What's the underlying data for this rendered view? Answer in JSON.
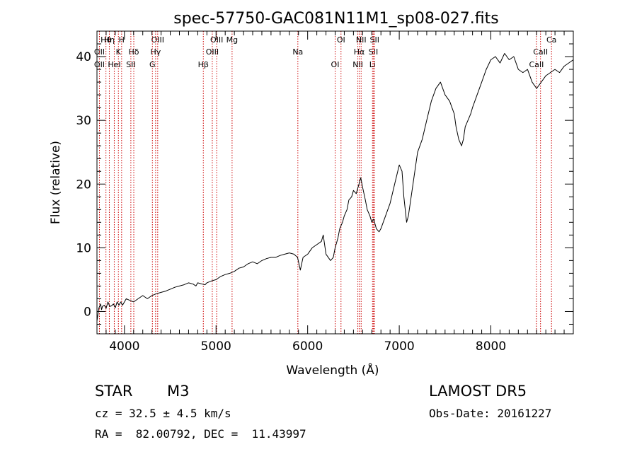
{
  "chart_data": {
    "type": "line",
    "title": "spec-57750-GAC081N11M1_sp08-027.fits",
    "xlabel": "Wavelength (Å)",
    "ylabel": "Flux (relative)",
    "xlim": [
      3700,
      8900
    ],
    "ylim": [
      -3.5,
      44
    ],
    "xticks": [
      4000,
      5000,
      6000,
      7000,
      8000
    ],
    "yticks": [
      0,
      10,
      20,
      30,
      40
    ],
    "grid": false,
    "series": [
      {
        "x": [
          3700,
          3720,
          3740,
          3750,
          3760,
          3780,
          3800,
          3820,
          3840,
          3860,
          3880,
          3900,
          3920,
          3940,
          3960,
          3980,
          4000,
          4020,
          4050,
          4100,
          4150,
          4200,
          4250,
          4300,
          4350,
          4400,
          4450,
          4500,
          4550,
          4600,
          4650,
          4700,
          4750,
          4780,
          4800,
          4850,
          4880,
          4900,
          4950,
          5000,
          5050,
          5100,
          5150,
          5200,
          5250,
          5300,
          5350,
          5400,
          5450,
          5500,
          5550,
          5600,
          5650,
          5700,
          5750,
          5800,
          5850,
          5890,
          5920,
          5950,
          6000,
          6050,
          6100,
          6150,
          6170,
          6200,
          6250,
          6280,
          6300,
          6330,
          6350,
          6380,
          6400,
          6430,
          6450,
          6480,
          6500,
          6530,
          6560,
          6580,
          6600,
          6630,
          6650,
          6680,
          6700,
          6720,
          6750,
          6780,
          6800,
          6850,
          6900,
          6950,
          7000,
          7030,
          7050,
          7080,
          7100,
          7120,
          7150,
          7200,
          7250,
          7300,
          7350,
          7400,
          7450,
          7500,
          7550,
          7600,
          7620,
          7650,
          7680,
          7700,
          7720,
          7750,
          7780,
          7800,
          7850,
          7900,
          7950,
          8000,
          8050,
          8100,
          8150,
          8200,
          8250,
          8300,
          8350,
          8400,
          8450,
          8500,
          8550,
          8600,
          8650,
          8700,
          8750,
          8800,
          8850,
          8900
        ],
        "y": [
          -1.5,
          0.5,
          1.2,
          0.3,
          0.8,
          1.0,
          0.5,
          1.5,
          0.8,
          0.9,
          1.2,
          0.6,
          1.5,
          1.0,
          1.5,
          1.0,
          1.5,
          2.0,
          1.8,
          1.5,
          2.0,
          2.5,
          2.0,
          2.5,
          2.8,
          3.0,
          3.2,
          3.5,
          3.8,
          4.0,
          4.2,
          4.5,
          4.3,
          4.0,
          4.5,
          4.3,
          4.2,
          4.5,
          4.8,
          5.0,
          5.5,
          5.8,
          6.0,
          6.3,
          6.8,
          7.0,
          7.5,
          7.8,
          7.5,
          8.0,
          8.3,
          8.5,
          8.5,
          8.8,
          9.0,
          9.2,
          9.0,
          8.5,
          6.5,
          8.5,
          9.0,
          10.0,
          10.5,
          11.0,
          12.0,
          9.0,
          8.0,
          8.5,
          10.0,
          11.5,
          13.0,
          14.0,
          15.0,
          16.0,
          17.5,
          18.0,
          19.0,
          18.5,
          20.0,
          21.0,
          19.5,
          17.5,
          16.0,
          15.0,
          14.0,
          14.5,
          13.0,
          12.5,
          13.0,
          15.0,
          17.0,
          20.0,
          23.0,
          22.0,
          18.0,
          14.0,
          15.0,
          17.0,
          20.0,
          25.0,
          27.0,
          30.0,
          33.0,
          35.0,
          36.0,
          34.0,
          33.0,
          31.0,
          29.0,
          27.0,
          26.0,
          27.0,
          29.0,
          30.0,
          31.0,
          32.0,
          34.0,
          36.0,
          38.0,
          39.5,
          40.0,
          39.0,
          40.5,
          39.5,
          40.0,
          38.0,
          37.5,
          38.0,
          36.0,
          35.0,
          36.0,
          37.0,
          37.5,
          38.0,
          37.5,
          38.5,
          39.0,
          39.5
        ]
      }
    ],
    "emission_lines": [
      {
        "label": "Hθ",
        "x": 3798
      },
      {
        "label": "OII",
        "x": 3727
      },
      {
        "label": "OII",
        "x": 3727
      },
      {
        "label": "Hη",
        "x": 3835
      },
      {
        "label": "K",
        "x": 3934
      },
      {
        "label": "HeI",
        "x": 3889
      },
      {
        "label": "H",
        "x": 3969
      },
      {
        "label": "Hδ",
        "x": 4102
      },
      {
        "label": "SII",
        "x": 4070
      },
      {
        "label": "OIII",
        "x": 4363
      },
      {
        "label": "Hγ",
        "x": 4340
      },
      {
        "label": "G",
        "x": 4305
      },
      {
        "label": "OIII",
        "x": 5007
      },
      {
        "label": "OIII",
        "x": 4959
      },
      {
        "label": "Hβ",
        "x": 4861
      },
      {
        "label": "Mg",
        "x": 5175
      },
      {
        "label": "Na",
        "x": 5893
      },
      {
        "label": "OI",
        "x": 6300
      },
      {
        "label": "OI",
        "x": 6364
      },
      {
        "label": "Hα",
        "x": 6563
      },
      {
        "label": "NII",
        "x": 6548
      },
      {
        "label": "NII",
        "x": 6584
      },
      {
        "label": "SII",
        "x": 6717
      },
      {
        "label": "Li",
        "x": 6708
      },
      {
        "label": "SII",
        "x": 6731
      },
      {
        "label": "CaII",
        "x": 8542
      },
      {
        "label": "CaII",
        "x": 8498
      },
      {
        "label": "Ca",
        "x": 8662
      }
    ],
    "colors": {
      "line": "#000000",
      "marker_lines": "#cc0000"
    }
  },
  "info": {
    "class_label": "STAR",
    "subclass": "M3",
    "survey": "LAMOST DR5",
    "cz": "cz = 32.5 ± 4.5 km/s",
    "obs_date": "Obs-Date: 20161227",
    "coords": "RA =  82.00792, DEC =  11.43997"
  }
}
